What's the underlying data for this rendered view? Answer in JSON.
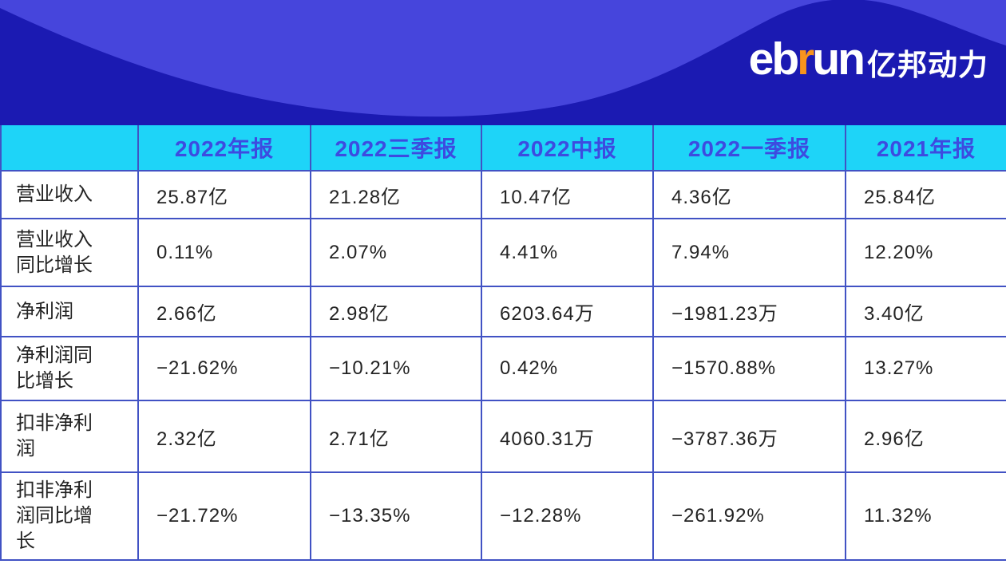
{
  "colors": {
    "banner_light": "#4645DC",
    "banner_dark": "#1B1AB2",
    "header_bg": "#1ED4F8",
    "header_text": "#3D4BE0",
    "table_border": "#4152C4",
    "logo_accent": "#F7941D"
  },
  "brand": {
    "logo": {
      "prefix": "eb",
      "accent": "r",
      "suffix": "un",
      "cjk": "亿邦动力"
    }
  },
  "chart_data": {
    "type": "table",
    "title": "",
    "columns": [
      "",
      "2022年报",
      "2022三季报",
      "2022中报",
      "2022一季报",
      "2021年报"
    ],
    "rows": [
      {
        "label": "营业收入",
        "values": [
          "25.87亿",
          "21.28亿",
          "10.47亿",
          "4.36亿",
          "25.84亿"
        ]
      },
      {
        "label": "营业收入同比增长",
        "values": [
          "0.11%",
          "2.07%",
          "4.41%",
          "7.94%",
          "12.20%"
        ]
      },
      {
        "label": "净利润",
        "values": [
          "2.66亿",
          "2.98亿",
          "6203.64万",
          "−1981.23万",
          "3.40亿"
        ]
      },
      {
        "label": "净利润同比增长",
        "values": [
          "−21.62%",
          "−10.21%",
          "0.42%",
          "−1570.88%",
          "13.27%"
        ]
      },
      {
        "label": "扣非净利润",
        "values": [
          "2.32亿",
          "2.71亿",
          "4060.31万",
          "−3787.36万",
          "2.96亿"
        ]
      },
      {
        "label": "扣非净利润同比增长",
        "values": [
          "−21.72%",
          "−13.35%",
          "−12.28%",
          "−261.92%",
          "11.32%"
        ]
      }
    ]
  }
}
